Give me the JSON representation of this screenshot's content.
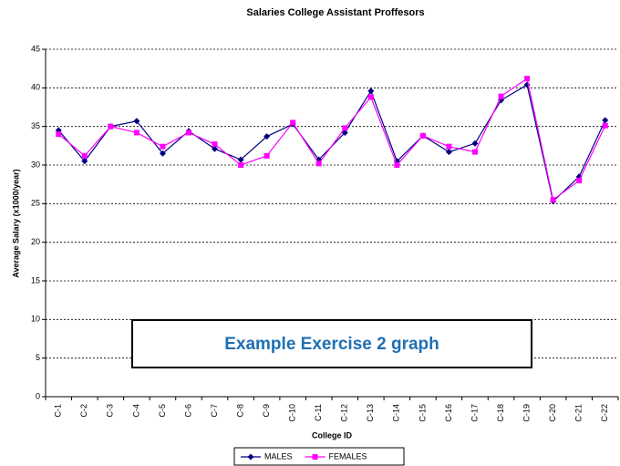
{
  "chart_data": {
    "type": "line",
    "title": "Salaries College Assistant Proffesors",
    "x_label": "College ID",
    "y_label": "Average Salary (x1000/year)",
    "annotation": "Example Exercise 2 graph",
    "categories": [
      "C-1",
      "C-2",
      "C-3",
      "C-4",
      "C-5",
      "C-6",
      "C-7",
      "C-8",
      "C-9",
      "C-10",
      "C-11",
      "C-12",
      "C-13",
      "C-14",
      "C-15",
      "C-16",
      "C-17",
      "C-18",
      "C-19",
      "C-20",
      "C-21",
      "C-22"
    ],
    "series": [
      {
        "name": "MALES",
        "color": "#000080",
        "marker": "diamond",
        "values": [
          34.5,
          30.5,
          35,
          35.7,
          31.5,
          34.4,
          32.1,
          30.7,
          33.7,
          35.3,
          30.7,
          34.2,
          39.6,
          30.5,
          33.8,
          31.7,
          32.8,
          38.4,
          40.4,
          25.3,
          28.5,
          35.8
        ]
      },
      {
        "name": "FEMALES",
        "color": "#ff00ff",
        "marker": "square",
        "values": [
          34,
          31.2,
          35,
          34.2,
          32.4,
          34.2,
          32.7,
          30,
          31.2,
          35.5,
          30.2,
          34.8,
          38.8,
          30,
          33.8,
          32.4,
          31.7,
          38.9,
          41.2,
          25.5,
          28,
          35.1
        ]
      }
    ],
    "ylim": [
      0,
      45
    ],
    "yticks": [
      0,
      5,
      10,
      15,
      20,
      25,
      30,
      35,
      40,
      45
    ],
    "grid": true,
    "legend": "bottom"
  }
}
